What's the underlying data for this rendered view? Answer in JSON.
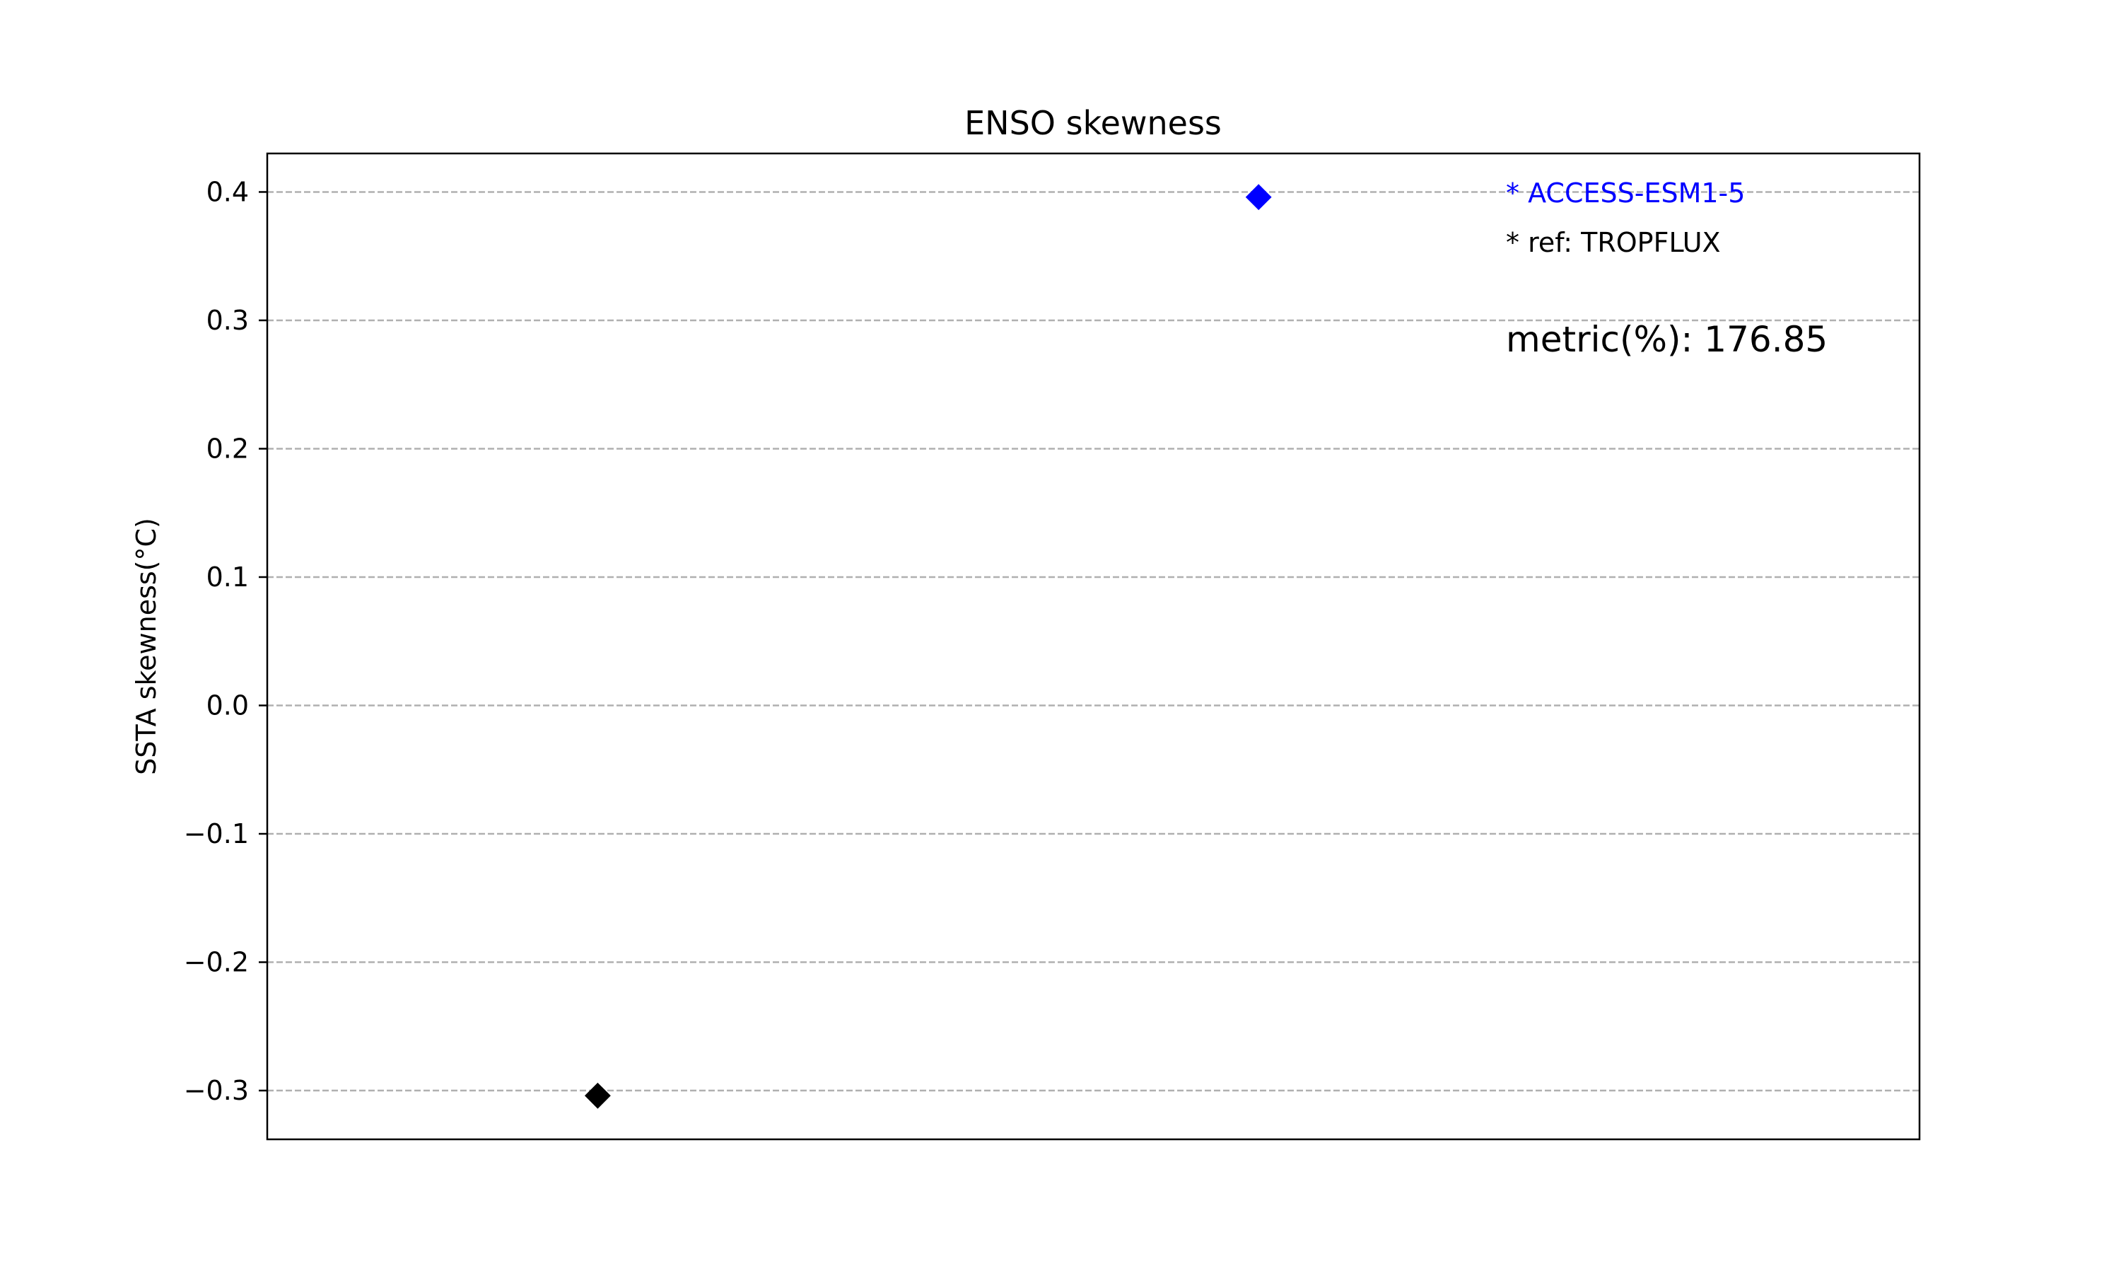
{
  "chart_data": {
    "type": "scatter",
    "title": "ENSO skewness",
    "xlabel": "",
    "ylabel": "SSTA skewness(°C)",
    "ylim": [
      -0.338,
      0.43
    ],
    "xlim": [
      0,
      1
    ],
    "grid": {
      "axis": "y",
      "style": "dashed"
    },
    "y_ticks": [
      -0.3,
      -0.2,
      -0.1,
      0.0,
      0.1,
      0.2,
      0.3,
      0.4
    ],
    "y_tick_labels": [
      "−0.3",
      "−0.2",
      "−0.1",
      "0.0",
      "0.1",
      "0.2",
      "0.3",
      "0.4"
    ],
    "series": [
      {
        "name": "ref: TROPFLUX",
        "x": [
          0.2
        ],
        "values": [
          -0.304
        ],
        "color": "#000000",
        "marker": "diamond"
      },
      {
        "name": "ACCESS-ESM1-5",
        "x": [
          0.6
        ],
        "values": [
          0.396
        ],
        "color": "#0000ff",
        "marker": "diamond"
      }
    ],
    "legend_entries": [
      {
        "text": "* ACCESS-ESM1-5",
        "color": "#0000ff"
      },
      {
        "text": "* ref: TROPFLUX",
        "color": "#000000"
      }
    ],
    "legend_placement": "top-right",
    "annotation": "metric(%): 176.85"
  }
}
